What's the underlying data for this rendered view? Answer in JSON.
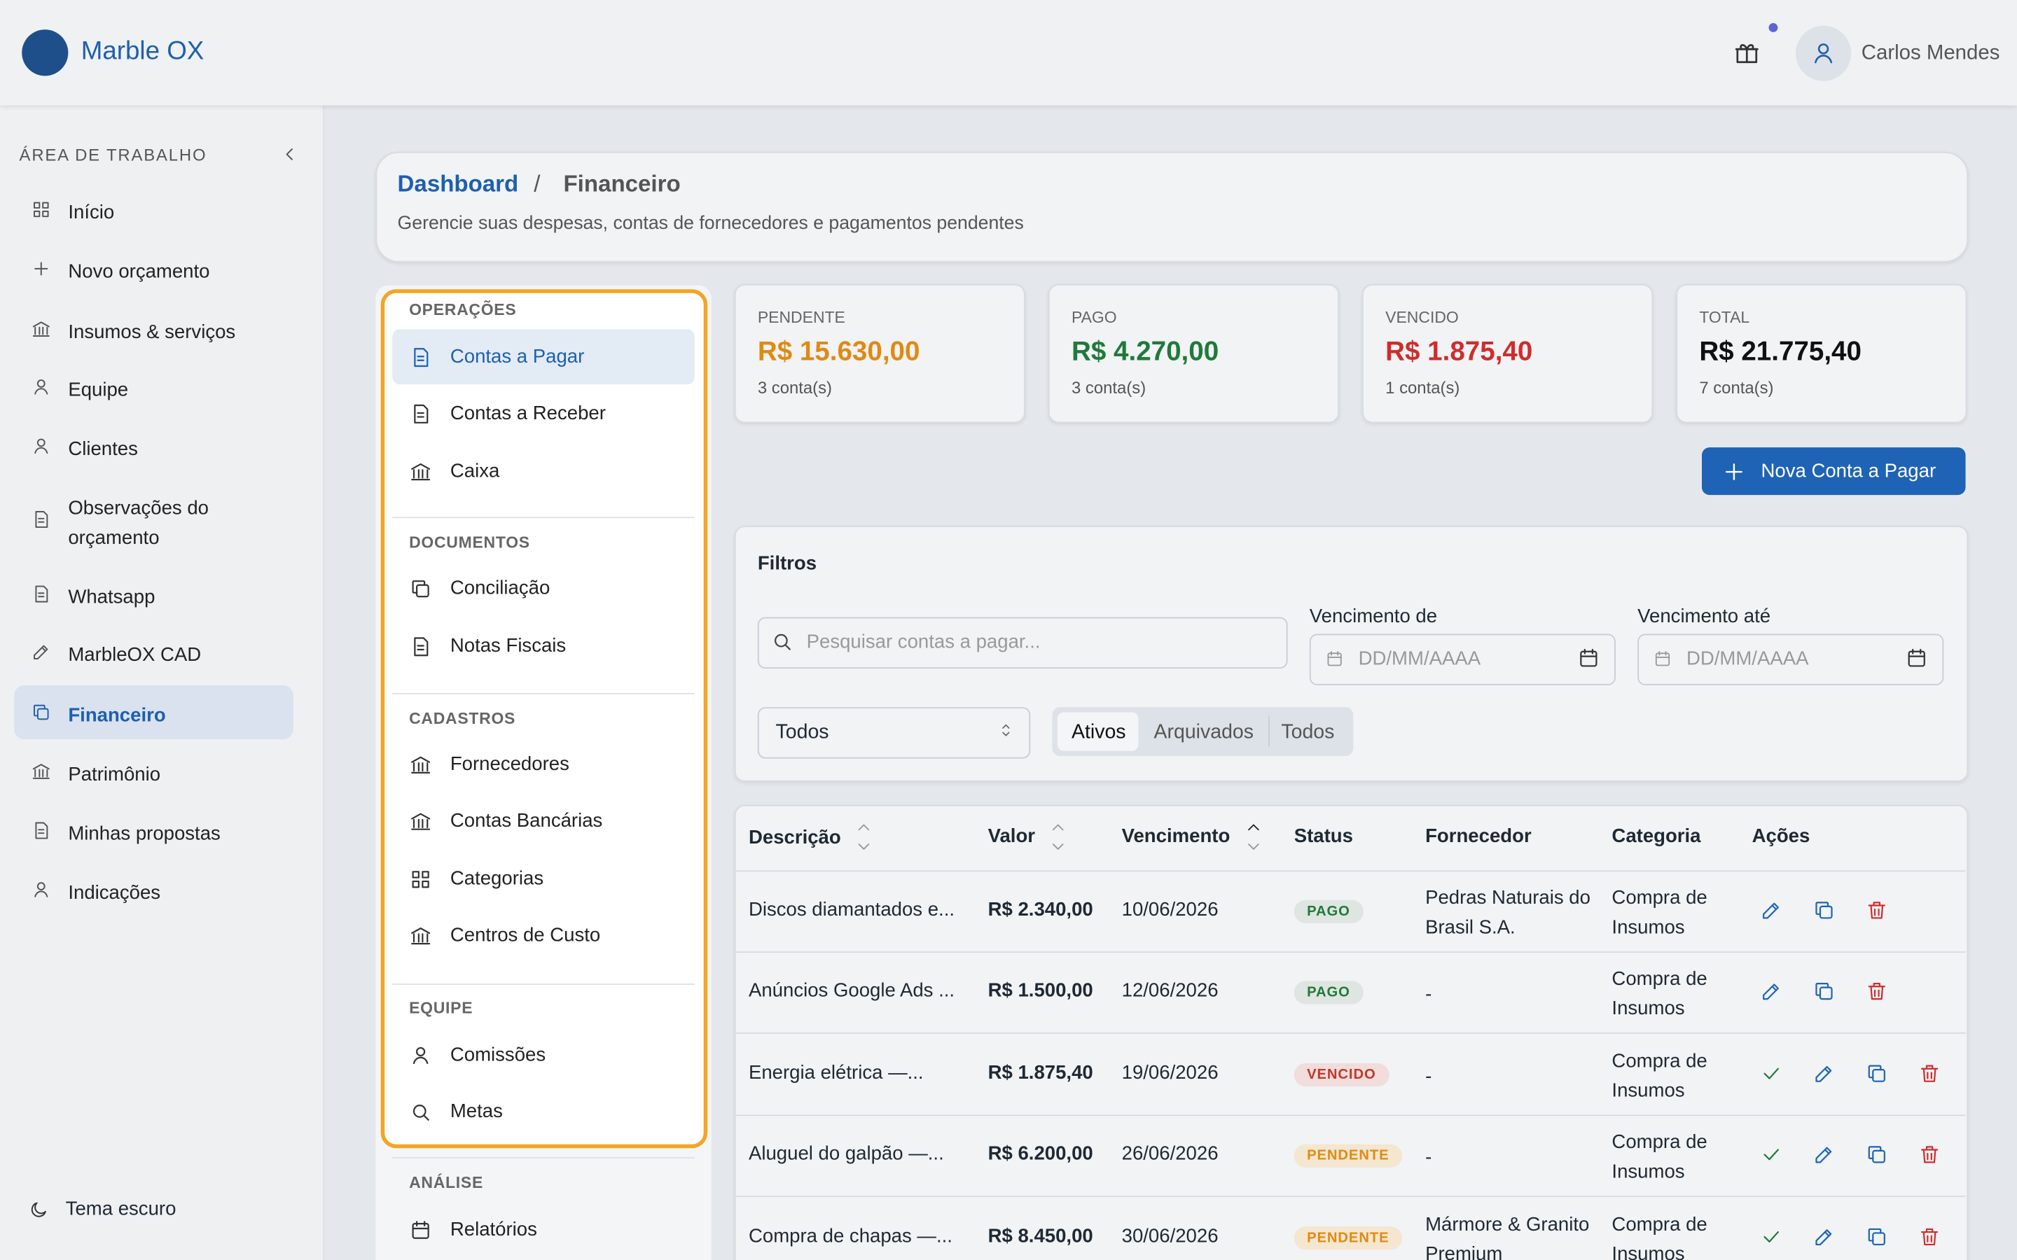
{
  "header": {
    "brand": "Marble OX",
    "user": "Carlos Mendes"
  },
  "sidebar": {
    "section": "ÁREA DE TRABALHO",
    "items": [
      "Início",
      "Novo orçamento",
      "Insumos & serviços",
      "Equipe",
      "Clientes",
      "Observações do orçamento",
      "Whatsapp",
      "MarbleOX CAD",
      "Financeiro",
      "Patrimônio",
      "Minhas propostas",
      "Indicações"
    ],
    "theme": "Tema escuro"
  },
  "page": {
    "breadcrumb": [
      "Dashboard",
      "/",
      "Financeiro"
    ],
    "subtitle": "Gerencie suas despesas, contas de fornecedores e pagamentos pendentes"
  },
  "submenu": [
    {
      "title": "OPERAÇÕES",
      "items": [
        "Contas a Pagar",
        "Contas a Receber",
        "Caixa"
      ]
    },
    {
      "title": "DOCUMENTOS",
      "items": [
        "Conciliação",
        "Notas Fiscais"
      ]
    },
    {
      "title": "CADASTROS",
      "items": [
        "Fornecedores",
        "Contas Bancárias",
        "Categorias",
        "Centros de Custo"
      ]
    },
    {
      "title": "EQUIPE",
      "items": [
        "Comissões",
        "Metas"
      ]
    },
    {
      "title": "ANÁLISE",
      "items": [
        "Relatórios"
      ]
    }
  ],
  "summary": [
    {
      "label": "PENDENTE",
      "value": "R$ 15.630,00",
      "count": "3 conta(s)"
    },
    {
      "label": "PAGO",
      "value": "R$ 4.270,00",
      "count": "3 conta(s)"
    },
    {
      "label": "VENCIDO",
      "value": "R$ 1.875,40",
      "count": "1 conta(s)"
    },
    {
      "label": "TOTAL",
      "value": "R$ 21.775,40",
      "count": "7 conta(s)"
    }
  ],
  "new_button": "Nova Conta a Pagar",
  "filters": {
    "title": "Filtros",
    "search": "Pesquisar contas a pagar...",
    "from": "Vencimento de",
    "to": "Vencimento até",
    "date_placeholder": "DD/MM/AAAA",
    "select": "Todos",
    "tabs": [
      "Ativos",
      "Arquivados",
      "Todos"
    ]
  },
  "table": {
    "columns": [
      "Descrição",
      "Valor",
      "Vencimento",
      "Status",
      "Fornecedor",
      "Categoria",
      "Ações"
    ],
    "rows": [
      [
        "Discos diamantados e...",
        "R$ 2.340,00",
        "10/06/2026",
        "PAGO",
        "Pedras Naturais do Brasil S.A.",
        "Compra de Insumos"
      ],
      [
        "Anúncios Google Ads ...",
        "R$ 1.500,00",
        "12/06/2026",
        "PAGO",
        "-",
        "Compra de Insumos"
      ],
      [
        "Energia elétrica —...",
        "R$ 1.875,40",
        "19/06/2026",
        "VENCIDO",
        "-",
        "Compra de Insumos"
      ],
      [
        "Aluguel do galpão —...",
        "R$ 6.200,00",
        "26/06/2026",
        "PENDENTE",
        "-",
        "Compra de Insumos"
      ],
      [
        "Compra de chapas —...",
        "R$ 8.450,00",
        "30/06/2026",
        "PENDENTE",
        "Mármore & Granito Premium",
        "Compra de Insumos"
      ]
    ]
  }
}
